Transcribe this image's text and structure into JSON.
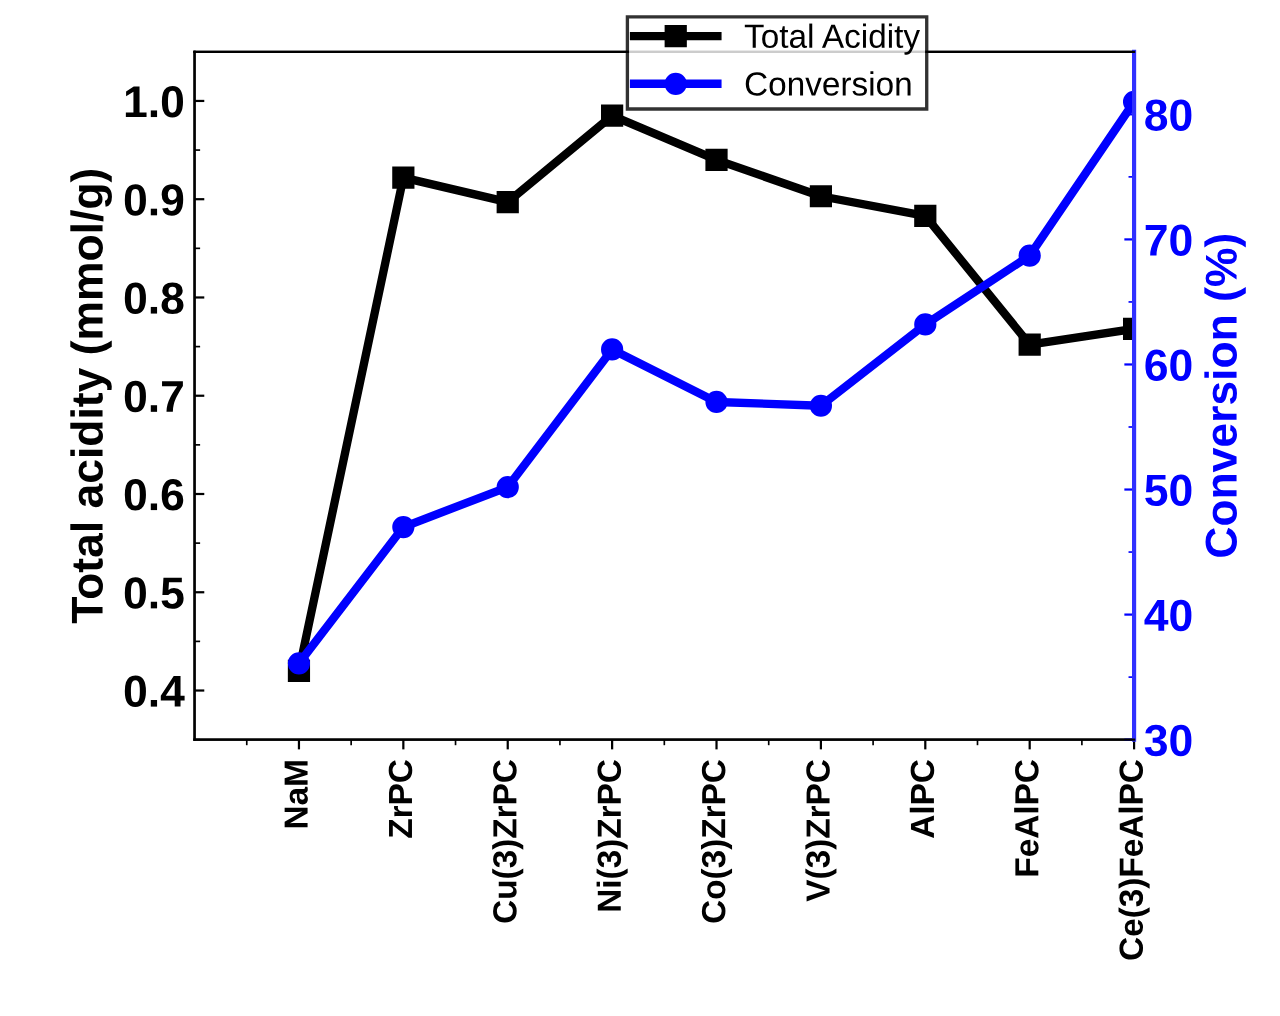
{
  "chart_data": {
    "type": "line",
    "categories": [
      "NaM",
      "ZrPC",
      "Cu(3)ZrPC",
      "Ni(3)ZrPC",
      "Co(3)ZrPC",
      "V(3)ZrPC",
      "AlPC",
      "FeAlPC",
      "Ce(3)FeAlPC"
    ],
    "series": [
      {
        "name": "Total Acidity",
        "color": "#000000",
        "marker": "square",
        "values": [
          0.42,
          0.922,
          0.897,
          0.985,
          0.94,
          0.903,
          0.883,
          0.752,
          0.768
        ]
      },
      {
        "name": "Conversion",
        "color": "#0000ff",
        "marker": "circle",
        "axis": "y2",
        "values": [
          36.1,
          47.0,
          50.2,
          61.2,
          57.0,
          56.7,
          63.2,
          68.7,
          81.0
        ]
      }
    ],
    "ylabel": "Total acidity (mmol/g)",
    "y2label": "Conversion (%)",
    "ylim": [
      0.35,
      1.05
    ],
    "yticks": [
      0.4,
      0.5,
      0.6,
      0.7,
      0.8,
      0.9,
      {
        "value": 1.0,
        "label": "1.0"
      }
    ],
    "y2lim": [
      30,
      85
    ],
    "y2ticks": [
      30,
      40,
      50,
      60,
      70,
      80
    ],
    "legend": "top",
    "grid": false,
    "line_style": "solid"
  }
}
